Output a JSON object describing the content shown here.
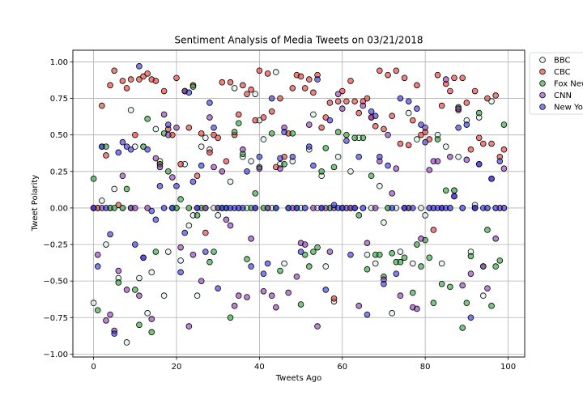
{
  "chart_data": {
    "type": "scatter",
    "title": "Sentiment Analysis of Media Tweets on 03/21/2018",
    "xlabel": "Tweets Ago",
    "ylabel": "Tweet Polarity",
    "xlim": [
      -5,
      104
    ],
    "ylim": [
      -1.02,
      1.08
    ],
    "xticks": [
      0,
      20,
      40,
      60,
      80,
      100
    ],
    "xtick_labels": [
      "0",
      "20",
      "40",
      "60",
      "80",
      "100"
    ],
    "yticks": [
      -1.0,
      -0.75,
      -0.5,
      -0.25,
      0.0,
      0.25,
      0.5,
      0.75,
      1.0
    ],
    "ytick_labels": [
      "−1.00",
      "−0.75",
      "−0.50",
      "−0.25",
      "0.00",
      "0.25",
      "0.50",
      "0.75",
      "1.00"
    ],
    "grid": true,
    "legend_position": "right",
    "series": [
      {
        "name": "BBC",
        "color": "#d8ecec",
        "y": [
          -0.65,
          0,
          0.05,
          -0.25,
          0,
          0.13,
          -0.48,
          0,
          -0.92,
          0.67,
          0.42,
          -0.48,
          0.42,
          -0.72,
          -0.44,
          0.54,
          0.32,
          -0.6,
          -0.3,
          0,
          0,
          -0.36,
          0.3,
          -0.12,
          -0.05,
          -0.6,
          0.42,
          0.48,
          0.4,
          0,
          -0.05,
          0,
          0,
          0.18,
          0.82,
          0,
          0.35,
          0,
          0.32,
          0.78,
          0.6,
          0.47,
          0,
          0,
          0.93,
          0.3,
          -0.38,
          0,
          0.32,
          0,
          0,
          0,
          0.4,
          0.64,
          0,
          0.22,
          -0.4,
          0,
          -0.64,
          0.35,
          0,
          0,
          0.25,
          0,
          0.48,
          0,
          -0.32,
          0,
          -0.38,
          0.15,
          -0.1,
          0,
          -0.72,
          0,
          -0.3,
          0,
          0.65,
          -0.38,
          0.47,
          0,
          -0.05,
          0,
          0,
          0.5,
          -0.38,
          0.42,
          0,
          0.12,
          0.35,
          0,
          0.6,
          -0.3,
          0.02,
          0.62,
          -0.6,
          0,
          0.73,
          0,
          0,
          0
        ]
      },
      {
        "name": "CBC",
        "color": "#e8302a",
        "y": [
          0,
          0,
          0.7,
          0.36,
          0.84,
          0.94,
          0.02,
          0.87,
          0.82,
          0.88,
          0.5,
          0.88,
          0.9,
          0.92,
          0.88,
          0.87,
          0.3,
          0.8,
          0.54,
          0.5,
          0.89,
          0.3,
          0.8,
          0.55,
          0.84,
          0.22,
          0.51,
          -0.17,
          0.38,
          0.5,
          0.48,
          0.86,
          0.32,
          0.86,
          0.5,
          0.64,
          0.84,
          0.78,
          0.81,
          0.6,
          0.94,
          0.62,
          0.92,
          0.66,
          0.28,
          0.75,
          0.35,
          0.51,
          0.82,
          0.91,
          0.9,
          0.82,
          0.88,
          0.79,
          0.91,
          0.55,
          0.62,
          0.72,
          -0.62,
          0.73,
          0.8,
          0.73,
          0.87,
          0.73,
          0.65,
          0.73,
          0.75,
          0.62,
          0.56,
          0.94,
          0.54,
          0.91,
          0.63,
          0.94,
          0.44,
          0.89,
          0.43,
          0.6,
          0.84,
          0.5,
          0.52,
          0.47,
          -0.15,
          0.91,
          0.7,
          0.85,
          0.8,
          0.89,
          0.67,
          0.89,
          0.72,
          0.4,
          0.8,
          0.48,
          0.44,
          0.75,
          0.44,
          0.77,
          0.35,
          0.4
        ]
      },
      {
        "name": "Fox News",
        "color": "#22a12d",
        "y": [
          0.2,
          -0.7,
          0.42,
          0.42,
          0,
          0,
          -0.51,
          0,
          0.13,
          0,
          -0.56,
          -0.8,
          0.42,
          0.61,
          -0.85,
          -0.3,
          0.3,
          0.51,
          0.25,
          0,
          0,
          0.06,
          0.8,
          0,
          0.83,
          -0.05,
          0,
          0,
          -0.37,
          -0.3,
          0,
          0,
          0,
          -0.75,
          0.52,
          0.58,
          0.37,
          -0.35,
          0,
          0.1,
          0.28,
          0,
          0,
          0.51,
          0,
          -0.43,
          0.3,
          0,
          0.51,
          0,
          -0.66,
          -0.32,
          -0.4,
          -0.3,
          -0.27,
          0.25,
          0.41,
          0,
          0.28,
          0.52,
          0,
          0.5,
          0,
          0.48,
          -0.05,
          0.48,
          -0.42,
          0.22,
          -0.32,
          -0.32,
          -0.47,
          0,
          -0.31,
          -0.37,
          -0.37,
          -0.34,
          0,
          -0.58,
          -0.25,
          -0.4,
          -0.22,
          -0.34,
          -0.65,
          0.47,
          -0.52,
          0.12,
          -0.54,
          0.12,
          0.69,
          -0.82,
          -0.65,
          -0.33,
          0,
          0.65,
          -0.4,
          -0.15,
          -0.67,
          -0.4,
          -0.36,
          0.57
        ]
      },
      {
        "name": "CNN",
        "color": "#8d31b8",
        "y": [
          0,
          -0.32,
          0,
          -0.77,
          -0.73,
          -0.84,
          -0.43,
          0.22,
          -0.56,
          0,
          0,
          -0.6,
          -0.34,
          0,
          -0.76,
          0.34,
          0.28,
          0.64,
          0.5,
          0.21,
          0.55,
          -0.27,
          0.8,
          -0.81,
          -0.32,
          0,
          -0.5,
          0,
          0.62,
          0.28,
          0,
          0.25,
          -0.08,
          -0.12,
          -0.67,
          -0.6,
          0.4,
          -0.61,
          -0.21,
          0,
          0.27,
          -0.57,
          0,
          -0.6,
          -0.68,
          0.27,
          0.55,
          -0.58,
          0,
          -0.47,
          -0.24,
          -0.25,
          0.57,
          0,
          -0.81,
          0,
          0,
          -0.3,
          0,
          0.78,
          0.68,
          0,
          0,
          0,
          -0.67,
          0.7,
          -0.24,
          0.62,
          0,
          0.32,
          -0.49,
          0.5,
          0.1,
          0.27,
          -0.6,
          0,
          0,
          -0.68,
          -0.69,
          -0.21,
          0.55,
          0.26,
          0.32,
          0.32,
          0,
          0.88,
          0.35,
          0.08,
          0.68,
          -0.53,
          0.33,
          -0.45,
          0,
          0.3,
          -0.4,
          -0.55,
          0.2,
          -0.21,
          0,
          0.27
        ]
      },
      {
        "name": "New York Times",
        "color": "#2c2ce8",
        "y": [
          0,
          -0.4,
          0.42,
          0,
          -0.18,
          -0.86,
          0.38,
          0.45,
          0.42,
          0.4,
          -0.25,
          0.97,
          -0.34,
          0.4,
          -0.02,
          -0.08,
          0.15,
          0,
          0.57,
          0,
          0.15,
          -0.44,
          -0.17,
          0.79,
          0.18,
          0,
          0.29,
          -0.3,
          0.72,
          0.55,
          -0.55,
          0,
          0,
          0,
          0,
          0,
          0,
          0.25,
          -0.4,
          0,
          0.35,
          -0.45,
          -0.38,
          0.75,
          0,
          0.34,
          0.52,
          0,
          0.35,
          0,
          -0.3,
          0,
          0.42,
          0.29,
          0.88,
          0,
          -0.56,
          0.6,
          0.02,
          0,
          0,
          0.46,
          -0.32,
          0,
          0.35,
          0,
          -0.73,
          0.66,
          0.63,
          0.35,
          -0.52,
          0.29,
          0,
          -0.45,
          0.75,
          0,
          0.73,
          0,
          0.68,
          0.57,
          0.45,
          0,
          0,
          0,
          0,
          0,
          0,
          0.08,
          0.55,
          0,
          0.57,
          -0.75,
          0,
          0.3,
          0,
          0,
          0.2,
          0,
          0.32,
          0
        ]
      }
    ]
  }
}
